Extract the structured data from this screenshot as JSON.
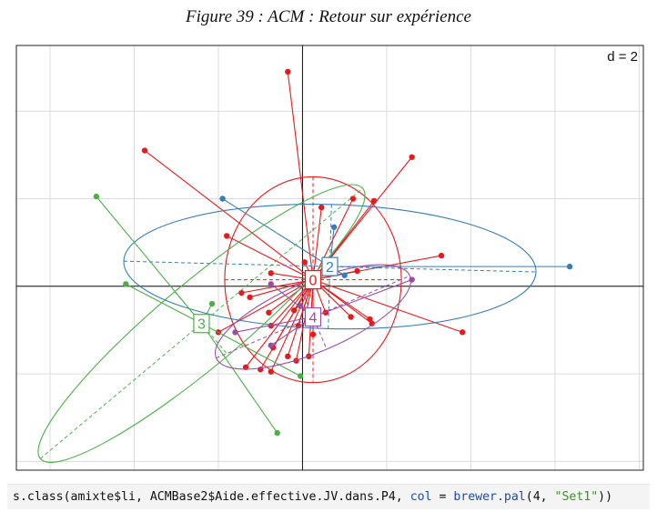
{
  "figure_title": "Figure 39 : ACM : Retour sur expérience",
  "code": {
    "prefix": "s.class(amixte$li, ACMBase2$Aide.effective.JV.dans.P4, ",
    "kw1": "col",
    "mid1": " = ",
    "kw2": "brewer.pal",
    "mid2": "(4, ",
    "str": "\"Set1\"",
    "suffix": "))"
  },
  "chart_data": {
    "type": "scatter",
    "subtype": "s.class (ade4) group star plot with inertia ellipses",
    "d_label": "d = 2",
    "xlim": [
      -6.8,
      8.1
    ],
    "ylim": [
      -4.2,
      5.5
    ],
    "grid_step": 2,
    "grid": true,
    "colors": {
      "0": "#e41a1c",
      "2": "#377eb8",
      "3": "#4daf4a",
      "4": "#984ea3"
    },
    "groups": [
      {
        "label": "0",
        "color": "#e41a1c",
        "centroid": [
          0.25,
          0.15
        ],
        "ellipse": {
          "rx": 2.1,
          "ry": 2.35,
          "angle": 0
        },
        "points": [
          [
            -0.35,
            4.9
          ],
          [
            -3.75,
            3.1
          ],
          [
            2.6,
            2.95
          ],
          [
            -1.8,
            1.15
          ],
          [
            1.2,
            2.0
          ],
          [
            0.45,
            1.8
          ],
          [
            1.7,
            1.95
          ],
          [
            3.3,
            0.7
          ],
          [
            1.3,
            0.35
          ],
          [
            0.05,
            0.55
          ],
          [
            -1.45,
            -0.15
          ],
          [
            -0.75,
            0.3
          ],
          [
            0.55,
            -0.6
          ],
          [
            1.15,
            -0.7
          ],
          [
            -1.25,
            -0.25
          ],
          [
            -0.8,
            -0.6
          ],
          [
            -0.75,
            -0.9
          ],
          [
            -0.2,
            -0.55
          ],
          [
            -0.1,
            -0.9
          ],
          [
            0.25,
            -1.1
          ],
          [
            1.6,
            -0.75
          ],
          [
            1.65,
            -0.85
          ],
          [
            3.8,
            -1.05
          ],
          [
            -0.35,
            -1.6
          ],
          [
            -0.7,
            -1.4
          ],
          [
            -1.35,
            -1.85
          ],
          [
            -1.0,
            -1.9
          ],
          [
            0.15,
            -1.6
          ],
          [
            -0.15,
            -1.7
          ],
          [
            -0.75,
            -1.95
          ],
          [
            -2.0,
            -1.05
          ]
        ]
      },
      {
        "label": "2",
        "color": "#377eb8",
        "centroid": [
          0.65,
          0.45
        ],
        "ellipse": {
          "rx": 4.9,
          "ry": 1.42,
          "angle": -1.5
        },
        "points": [
          [
            -1.9,
            2.0
          ],
          [
            0.75,
            1.35
          ],
          [
            6.35,
            0.45
          ],
          [
            1.0,
            0.25
          ]
        ]
      },
      {
        "label": "3",
        "color": "#4daf4a",
        "centroid": [
          -2.4,
          -0.85
        ],
        "ellipse": {
          "rx": 5.0,
          "ry": 0.95,
          "angle": 40
        },
        "points": [
          [
            -4.9,
            2.05
          ],
          [
            -4.2,
            0.05
          ],
          [
            -2.15,
            -0.4
          ],
          [
            -0.05,
            -2.05
          ],
          [
            -0.6,
            -3.35
          ]
        ]
      },
      {
        "label": "4",
        "color": "#984ea3",
        "centroid": [
          0.25,
          -0.7
        ],
        "ellipse": {
          "rx": 2.5,
          "ry": 0.8,
          "angle": 23
        },
        "points": [
          [
            -0.75,
            0.05
          ],
          [
            2.6,
            0.15
          ],
          [
            -1.6,
            -1.05
          ],
          [
            -0.75,
            -1.35
          ],
          [
            -0.05,
            -0.45
          ]
        ]
      }
    ]
  }
}
